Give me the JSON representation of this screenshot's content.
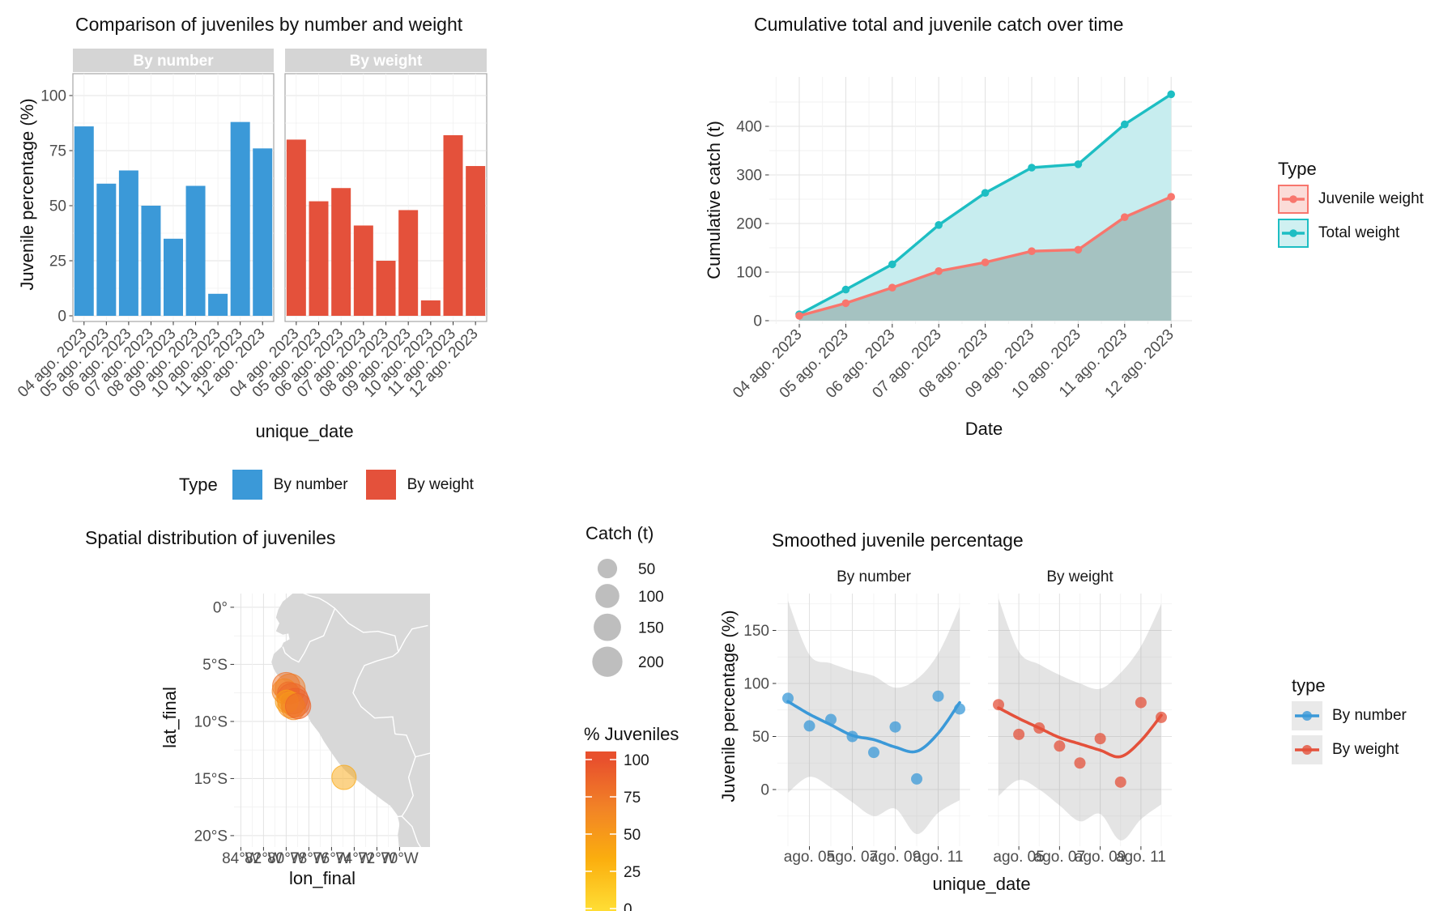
{
  "colors": {
    "blue": "#3B99D8",
    "red": "#E4513B",
    "salmon": "#F8766D",
    "teal": "#1DBEC3",
    "salmon_light": "#FBDCD8",
    "teal_light": "#CFF0F1",
    "teal_area": "#C7EDEF",
    "overlap_area": "#A5C2C1",
    "grid_major": "#E3E3E3",
    "grid_minor": "#F1F1F1",
    "axis_text": "#4D4D4D",
    "text": "#1A1A1A",
    "strip_bg": "#D5D5D5",
    "strip_text": "#FFFFFF",
    "panel_border": "#A6A6A6",
    "land": "#D8D8D8",
    "country_border": "#FFFFFF",
    "legend_key_bg": "#E9E9E9",
    "size_legend_gray": "#BEBEBE"
  },
  "chart_data": [
    {
      "id": "juvenile-comparison",
      "type": "bar",
      "title": "Comparison of juveniles by number and weight",
      "facets": [
        "By number",
        "By weight"
      ],
      "categories": [
        "04 ago. 2023",
        "05 ago. 2023",
        "06 ago. 2023",
        "07 ago. 2023",
        "08 ago. 2023",
        "09 ago. 2023",
        "10 ago. 2023",
        "11 ago. 2023",
        "12 ago. 2023"
      ],
      "series": [
        {
          "name": "By number",
          "color": "#3B99D8",
          "values": [
            86,
            60,
            66,
            50,
            35,
            59,
            10,
            88,
            76
          ]
        },
        {
          "name": "By weight",
          "color": "#E4513B",
          "values": [
            80,
            52,
            58,
            41,
            25,
            48,
            7,
            82,
            68
          ]
        }
      ],
      "ylabel": "Juvenile percentage (%)",
      "xlabel": "unique_date",
      "yticks": [
        0,
        25,
        50,
        75,
        100
      ],
      "ylim": [
        0,
        105
      ],
      "legend": {
        "title": "Type"
      }
    },
    {
      "id": "cumulative-catch",
      "type": "line-area",
      "title": "Cumulative total and juvenile catch over time",
      "categories": [
        "04 ago. 2023",
        "05 ago. 2023",
        "06 ago. 2023",
        "07 ago. 2023",
        "08 ago. 2023",
        "09 ago. 2023",
        "10 ago. 2023",
        "11 ago. 2023",
        "12 ago. 2023"
      ],
      "series": [
        {
          "name": "Juvenile weight",
          "color": "#F8766D",
          "values": [
            10,
            36,
            68,
            102,
            120,
            143,
            146,
            213,
            255
          ]
        },
        {
          "name": "Total weight",
          "color": "#1DBEC3",
          "values": [
            13,
            64,
            116,
            197,
            263,
            315,
            322,
            404,
            466
          ]
        }
      ],
      "ylabel": "Cumulative catch (t)",
      "xlabel": "Date",
      "yticks": [
        0,
        100,
        200,
        300,
        400
      ],
      "ylim": [
        0,
        480
      ],
      "legend": {
        "title": "Type"
      }
    },
    {
      "id": "spatial-distribution",
      "type": "bubble-map",
      "title": "Spatial distribution of juveniles",
      "xlabel": "lon_final",
      "ylabel": "lat_final",
      "xticks": [
        "84°W",
        "82°W",
        "80°W",
        "78°W",
        "76°W",
        "74°W",
        "72°W",
        "70°W"
      ],
      "xtick_lons": [
        -84,
        -82,
        -80,
        -78,
        -76,
        -74,
        -72,
        -70
      ],
      "yticks": [
        "0°",
        "5°S",
        "10°S",
        "15°S",
        "20°S"
      ],
      "ytick_lats": [
        0,
        -5,
        -10,
        -15,
        -20
      ],
      "points": [
        {
          "lon": -80.0,
          "lat": -6.9,
          "catch": 150,
          "pct": 78
        },
        {
          "lon": -79.65,
          "lat": -7.15,
          "catch": 200,
          "pct": 72
        },
        {
          "lon": -80.15,
          "lat": -7.35,
          "catch": 110,
          "pct": 66
        },
        {
          "lon": -79.8,
          "lat": -7.5,
          "catch": 75,
          "pct": 82
        },
        {
          "lon": -79.45,
          "lat": -8.0,
          "catch": 210,
          "pct": 85
        },
        {
          "lon": -79.2,
          "lat": -8.35,
          "catch": 170,
          "pct": 90
        },
        {
          "lon": -79.6,
          "lat": -8.55,
          "catch": 130,
          "pct": 55
        },
        {
          "lon": -79.95,
          "lat": -8.25,
          "catch": 85,
          "pct": 45
        },
        {
          "lon": -79.35,
          "lat": -8.8,
          "catch": 100,
          "pct": 62
        },
        {
          "lon": -78.95,
          "lat": -8.65,
          "catch": 120,
          "pct": 88
        },
        {
          "lon": -74.9,
          "lat": -14.9,
          "catch": 105,
          "pct": 38
        }
      ],
      "size_legend": {
        "title": "Catch (t)",
        "values": [
          50,
          100,
          150,
          200
        ]
      },
      "color_legend": {
        "title": "% Juveniles",
        "ticks": [
          100,
          75,
          50,
          25,
          0
        ],
        "stops": [
          "#E8502D",
          "#F28426",
          "#FBAE0E",
          "#FFDC33"
        ]
      }
    },
    {
      "id": "smoothed-percentage",
      "type": "scatter-smooth",
      "title": "Smoothed juvenile percentage",
      "facets": [
        "By number",
        "By weight"
      ],
      "categories": [
        "04 ago. 2023",
        "05 ago. 2023",
        "06 ago. 2023",
        "07 ago. 2023",
        "08 ago. 2023",
        "09 ago. 2023",
        "10 ago. 2023",
        "11 ago. 2023",
        "12 ago. 2023"
      ],
      "xticks": [
        "ago. 05",
        "ago. 07",
        "ago. 09",
        "ago. 11"
      ],
      "xtick_idx": [
        1,
        3,
        5,
        7
      ],
      "yticks": [
        0,
        50,
        100,
        150
      ],
      "ylim": [
        -53,
        185
      ],
      "series": [
        {
          "name": "By number",
          "color": "#3B99D8",
          "points": [
            86,
            60,
            66,
            50,
            35,
            59,
            10,
            88,
            76
          ],
          "smooth": [
            83,
            71,
            61,
            51,
            47,
            40,
            36,
            53,
            82
          ],
          "band_upper": [
            178,
            127,
            119,
            112,
            107,
            96,
            104,
            128,
            172
          ],
          "band_lower": [
            -3,
            12,
            2,
            -12,
            -25,
            -18,
            -42,
            -22,
            -10
          ]
        },
        {
          "name": "By weight",
          "color": "#E4513B",
          "points": [
            80,
            52,
            58,
            41,
            25,
            48,
            7,
            82,
            68
          ],
          "smooth": [
            77,
            67,
            58,
            49,
            43,
            37,
            31,
            46,
            70
          ],
          "band_upper": [
            180,
            130,
            118,
            108,
            100,
            95,
            110,
            135,
            175
          ],
          "band_lower": [
            -6,
            9,
            0,
            -15,
            -30,
            -23,
            -48,
            -28,
            -14
          ]
        }
      ],
      "ylabel": "Juvenile percentage (%)",
      "xlabel": "unique_date",
      "legend": {
        "title": "type"
      }
    }
  ]
}
